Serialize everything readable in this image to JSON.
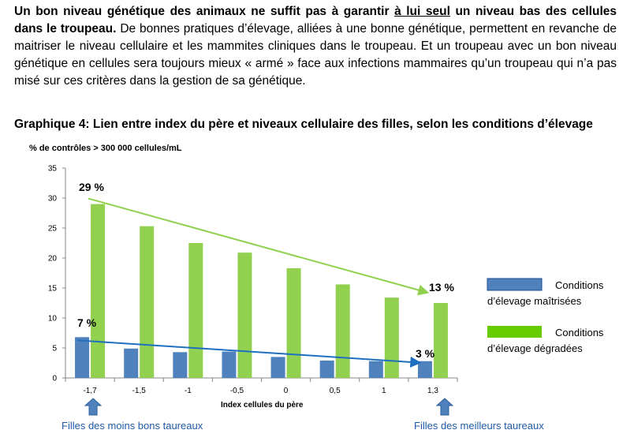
{
  "intro": {
    "bold_lead": "Un bon niveau génétique des animaux ne suffit pas à garantir",
    "bold_underlined": "à lui seul",
    "bold_tail": "un niveau bas des cellules dans le troupeau.",
    "body": "De bonnes pratiques d’élevage, alliées à une bonne génétique, permettent en revanche de maitriser le niveau cellulaire et les mammites cliniques dans le troupeau. Et un troupeau avec un bon niveau génétique en cellules sera toujours mieux « armé » face aux infections mammaires qu’un troupeau qui n’a pas misé sur ces critères dans la gestion de sa génétique."
  },
  "figure": {
    "heading": "Graphique 4: Lien entre index du père et niveaux cellulaire des filles, selon les conditions d’élevage",
    "annotation_left": "Filles des moins bons taureaux",
    "annotation_right": "Filles des meilleurs taureaux",
    "trend_labels": {
      "green_start": "29 %",
      "green_end": "13 %",
      "blue_start": "7 %",
      "blue_end": "3 %"
    },
    "colors": {
      "blue": "#4f81bd",
      "green": "#92d050",
      "green_legend": "#66cc00",
      "green_arrow": "#92d050",
      "blue_arrow": "#1f6fc0",
      "up_arrow": "#4f81bd"
    }
  },
  "chart_data": {
    "type": "bar",
    "ylabel": "% de contrôles > 300 000 cellules/mL",
    "xlabel": "Index cellules du père",
    "ylim": [
      0,
      35
    ],
    "yticks": [
      "0",
      "5",
      "10",
      "15",
      "20",
      "25",
      "30",
      "35"
    ],
    "categories": [
      "-1,7",
      "-1,5",
      "-1",
      "-0,5",
      "0",
      "0,5",
      "1",
      "1,3"
    ],
    "series": [
      {
        "name": "Conditions d’élevage maîtrisées",
        "values": [
          6.8,
          4.9,
          4.3,
          4.4,
          3.5,
          2.9,
          2.8,
          2.8
        ]
      },
      {
        "name": "Conditions d’élevage dégradées",
        "values": [
          29.0,
          25.3,
          22.5,
          20.9,
          18.3,
          15.6,
          13.4,
          12.5
        ]
      }
    ],
    "grid": false,
    "legend": "right"
  }
}
